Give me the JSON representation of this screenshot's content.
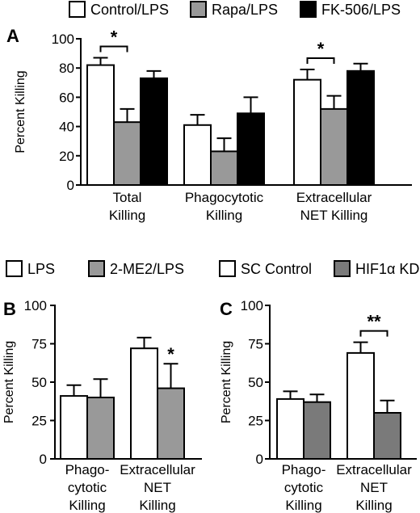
{
  "colors": {
    "white": "#ffffff",
    "gray": "#999999",
    "dark_gray": "#7a7a7a",
    "black": "#000000"
  },
  "legend_top": [
    {
      "label": "Control/LPS",
      "color": "#ffffff"
    },
    {
      "label": "Rapa/LPS",
      "color": "#999999"
    },
    {
      "label": "FK-506/LPS",
      "color": "#000000"
    }
  ],
  "legend_mid": [
    {
      "label": "LPS",
      "color": "#ffffff"
    },
    {
      "label": "2-ME2/LPS",
      "color": "#999999"
    },
    {
      "label": "SC Control",
      "color": "#ffffff"
    },
    {
      "label": "HIF1α KD",
      "color": "#7a7a7a"
    }
  ],
  "chart_data": [
    {
      "panel": "A",
      "type": "bar",
      "ylabel": "Percent Killing",
      "ylim": [
        0,
        100
      ],
      "yticks": [
        0,
        20,
        40,
        60,
        80,
        100
      ],
      "categories": [
        [
          "Total",
          "Killing"
        ],
        [
          "Phagocytotic",
          "Killing"
        ],
        [
          "Extracellular",
          "NET Killing"
        ]
      ],
      "series": [
        {
          "name": "Control/LPS",
          "color": "#ffffff",
          "values": [
            82,
            41,
            72
          ],
          "errors": [
            5,
            7,
            7
          ]
        },
        {
          "name": "Rapa/LPS",
          "color": "#999999",
          "values": [
            43,
            23,
            52
          ],
          "errors": [
            9,
            9,
            9
          ]
        },
        {
          "name": "FK-506/LPS",
          "color": "#000000",
          "values": [
            73,
            49,
            78
          ],
          "errors": [
            5,
            11,
            5
          ]
        }
      ],
      "significance": [
        {
          "category": 0,
          "from_series": 0,
          "to_series": 1,
          "label": "*"
        },
        {
          "category": 2,
          "from_series": 0,
          "to_series": 1,
          "label": "*"
        }
      ]
    },
    {
      "panel": "B",
      "type": "bar",
      "ylabel": "Percent Killing",
      "ylim": [
        0,
        100
      ],
      "yticks": [
        0,
        25,
        50,
        75,
        100
      ],
      "categories": [
        [
          "Phago-",
          "cytotic",
          "Killing"
        ],
        [
          "Extracellular",
          "NET",
          "Killing"
        ]
      ],
      "series": [
        {
          "name": "LPS",
          "color": "#ffffff",
          "values": [
            41,
            72
          ],
          "errors": [
            7,
            7
          ]
        },
        {
          "name": "2-ME2/LPS",
          "color": "#999999",
          "values": [
            40,
            46
          ],
          "errors": [
            12,
            16
          ]
        }
      ],
      "annotations": [
        {
          "category": 1,
          "series": 1,
          "label": "*"
        }
      ]
    },
    {
      "panel": "C",
      "type": "bar",
      "ylabel": "Percent Killing",
      "ylim": [
        0,
        100
      ],
      "yticks": [
        0,
        25,
        50,
        75,
        100
      ],
      "categories": [
        [
          "Phago-",
          "cytotic",
          "Killing"
        ],
        [
          "Extracellular",
          "NET",
          "Killing"
        ]
      ],
      "series": [
        {
          "name": "SC Control",
          "color": "#ffffff",
          "values": [
            39,
            69
          ],
          "errors": [
            5,
            7
          ]
        },
        {
          "name": "HIF1α KD",
          "color": "#7a7a7a",
          "values": [
            37,
            30
          ],
          "errors": [
            5,
            8
          ]
        }
      ],
      "significance": [
        {
          "category": 1,
          "from_series": 0,
          "to_series": 1,
          "label": "**"
        }
      ]
    }
  ]
}
